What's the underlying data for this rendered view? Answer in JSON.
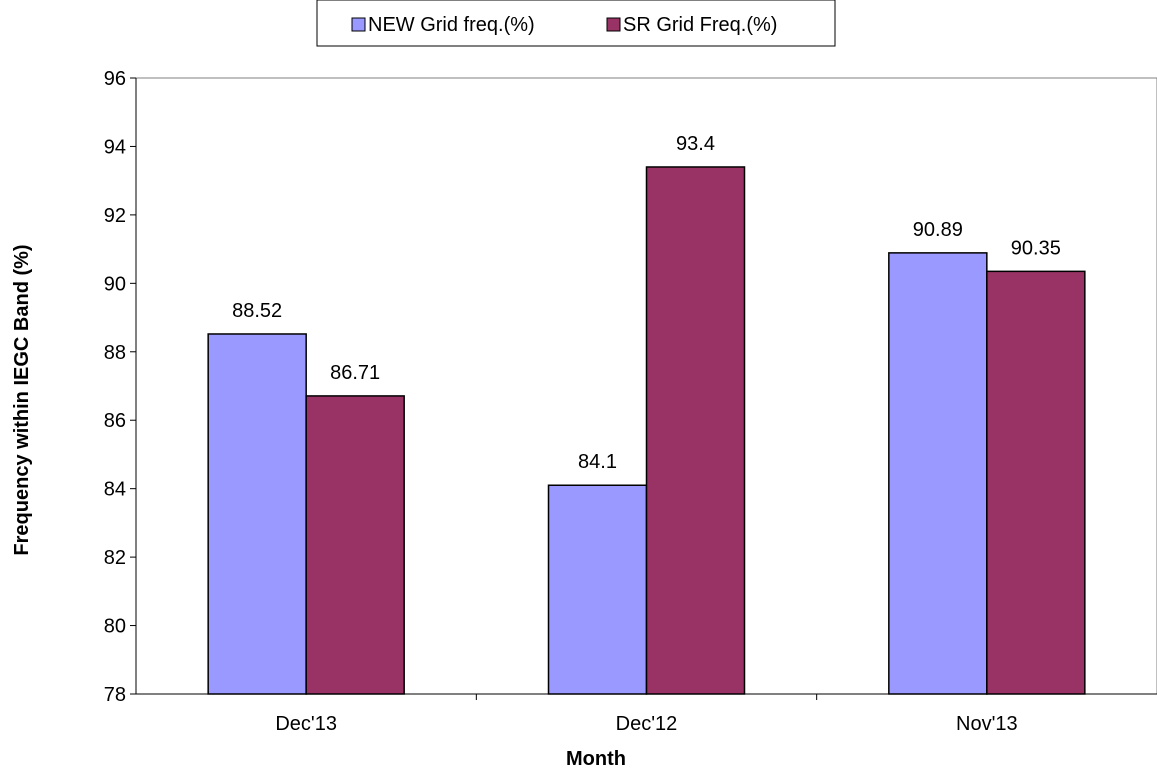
{
  "chart_data": {
    "type": "bar",
    "categories": [
      "Dec'13",
      "Dec'12",
      "Nov'13"
    ],
    "series": [
      {
        "name": "NEW Grid freq.(%)",
        "values": [
          88.52,
          84.1,
          90.89
        ],
        "color": "#9999FF"
      },
      {
        "name": "SR Grid Freq.(%)",
        "values": [
          86.71,
          93.4,
          90.35
        ],
        "color": "#993366"
      }
    ],
    "data_labels": [
      [
        "88.52",
        "84.1",
        "90.89"
      ],
      [
        "86.71",
        "93.4",
        "90.35"
      ]
    ],
    "xlabel": "Month",
    "ylabel": "Frequency within IEGC Band (%)",
    "ylim": [
      78,
      96
    ],
    "yticks": [
      78,
      80,
      82,
      84,
      86,
      88,
      90,
      92,
      94,
      96
    ],
    "grid": false,
    "legend_position": "top-center"
  }
}
